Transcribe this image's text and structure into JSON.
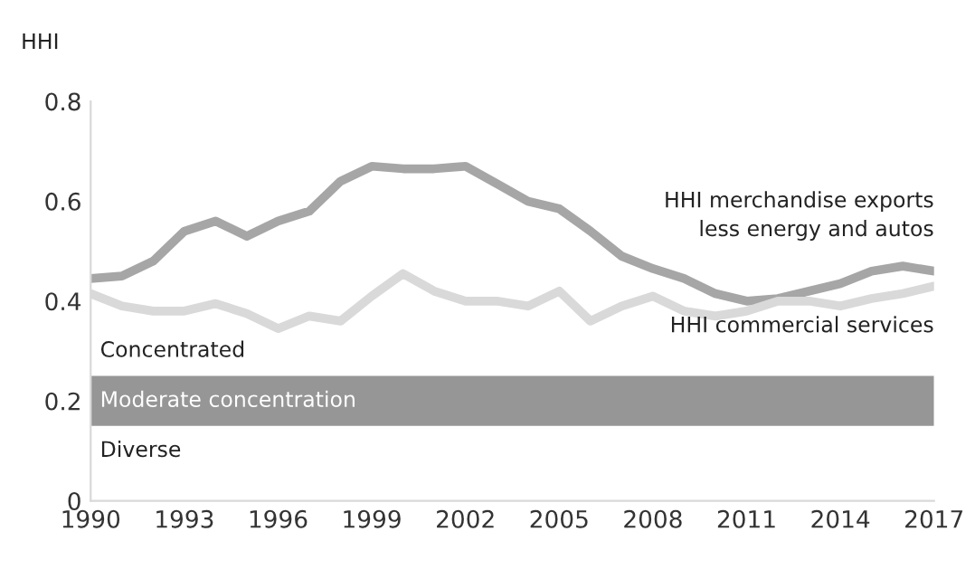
{
  "chart_data": {
    "type": "line",
    "ylabel": "HHI",
    "x": [
      1990,
      1991,
      1992,
      1993,
      1994,
      1995,
      1996,
      1997,
      1998,
      1999,
      2000,
      2001,
      2002,
      2003,
      2004,
      2005,
      2006,
      2007,
      2008,
      2009,
      2010,
      2011,
      2012,
      2013,
      2014,
      2015,
      2016,
      2017
    ],
    "series": [
      {
        "name": "HHI merchandise exports\nless energy and autos",
        "color": "#a6a6a6",
        "values": [
          0.445,
          0.45,
          0.48,
          0.54,
          0.56,
          0.53,
          0.56,
          0.58,
          0.64,
          0.67,
          0.665,
          0.665,
          0.67,
          0.635,
          0.6,
          0.585,
          0.54,
          0.49,
          0.465,
          0.445,
          0.415,
          0.4,
          0.405,
          0.42,
          0.435,
          0.46,
          0.47,
          0.46
        ]
      },
      {
        "name": "HHI commercial services",
        "color": "#d9d9d9",
        "values": [
          0.415,
          0.39,
          0.38,
          0.38,
          0.395,
          0.375,
          0.345,
          0.37,
          0.36,
          0.41,
          0.455,
          0.42,
          0.4,
          0.4,
          0.39,
          0.42,
          0.36,
          0.39,
          0.41,
          0.38,
          0.37,
          0.38,
          0.4,
          0.4,
          0.39,
          0.405,
          0.415,
          0.43
        ]
      }
    ],
    "bands": [
      {
        "axis": "y",
        "from": 0.15,
        "to": 0.25,
        "label": "Moderate concentration",
        "color": "#969696"
      }
    ],
    "annotations": [
      "Concentrated",
      "Diverse"
    ],
    "xlim": [
      1990,
      2017
    ],
    "xticks": [
      1990,
      1993,
      1996,
      1999,
      2002,
      2005,
      2008,
      2011,
      2014,
      2017
    ],
    "ylim": [
      0,
      0.8
    ],
    "yticks": [
      0,
      0.2,
      0.4,
      0.6,
      0.8
    ],
    "grid": false,
    "legend": false,
    "line_style": "solid",
    "marker": "none"
  }
}
